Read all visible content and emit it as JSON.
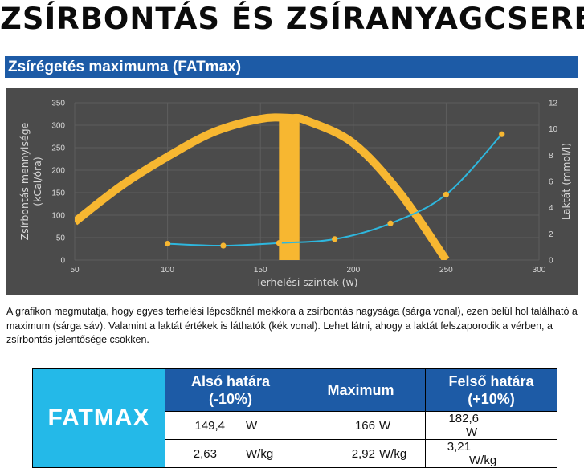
{
  "page_title": "ZSÍRBONTÁS ÉS ZSÍRANYAGCSERE",
  "section_title": "Zsírégetés maximuma (FATmax)",
  "chart_data": {
    "type": "line",
    "x": [
      50,
      100,
      150,
      200,
      250,
      300
    ],
    "xlabel": "Terhelési szintek (w)",
    "ylabel_left": [
      "Zsírbontás mennyisége",
      "(kCal/óra)"
    ],
    "ylabel_right": "Laktát (mmol/l)",
    "xlim": [
      50,
      300
    ],
    "ylim_left": [
      0,
      350
    ],
    "ylim_right": [
      0,
      12
    ],
    "x_ticks": [
      "50",
      "100",
      "150",
      "200",
      "250",
      "300"
    ],
    "y_ticks_left": [
      "0",
      "50",
      "100",
      "150",
      "200",
      "250",
      "300",
      "350"
    ],
    "y_ticks_right": [
      "0",
      "2",
      "4",
      "6",
      "8",
      "10",
      "12"
    ],
    "grid": true,
    "series": [
      {
        "color": "#f7b731",
        "axis": "left",
        "style": "thick-curve",
        "x": [
          50,
          75,
          100,
          125,
          150,
          166,
          175,
          200,
          225,
          250
        ],
        "y": [
          85,
          165,
          230,
          285,
          314,
          316,
          310,
          260,
          150,
          0
        ]
      },
      {
        "color": "#2eb7de",
        "axis": "right",
        "style": "line-with-markers",
        "x": [
          100,
          130,
          160,
          190,
          220,
          250,
          280
        ],
        "y": [
          1.25,
          1.1,
          1.3,
          1.6,
          2.8,
          5.0,
          9.6
        ]
      }
    ],
    "max_band": {
      "x_from": 160,
      "x_to": 171,
      "color": "#f7b731"
    }
  },
  "caption": "A grafikon megmutatja, hogy egyes terhelési lépcsőknél mekkora a zsírbontás nagysága (sárga vonal), ezen belül hol található a maximum (sárga sáv). Valamint a laktát értékek is láthatók (kék vonal). Lehet látni, ahogy a laktát felszaporodik a vérben, a zsírbontás jelentősége csökken.",
  "table": {
    "label": "FATMAX",
    "headers": {
      "lower_line1": "Alsó határa",
      "lower_line2": "(-10%)",
      "max": "Maximum",
      "upper_line1": "Felső határa",
      "upper_line2": "(+10%)"
    },
    "rows": [
      {
        "lower": "149,4",
        "lower_unit": "W",
        "max": "166",
        "max_unit": "W",
        "upper": "182,6",
        "upper_unit": "W"
      },
      {
        "lower": "2,63",
        "lower_unit": "W/kg",
        "max": "2,92",
        "max_unit": "W/kg",
        "upper": "3,21",
        "upper_unit": "W/kg"
      }
    ]
  }
}
